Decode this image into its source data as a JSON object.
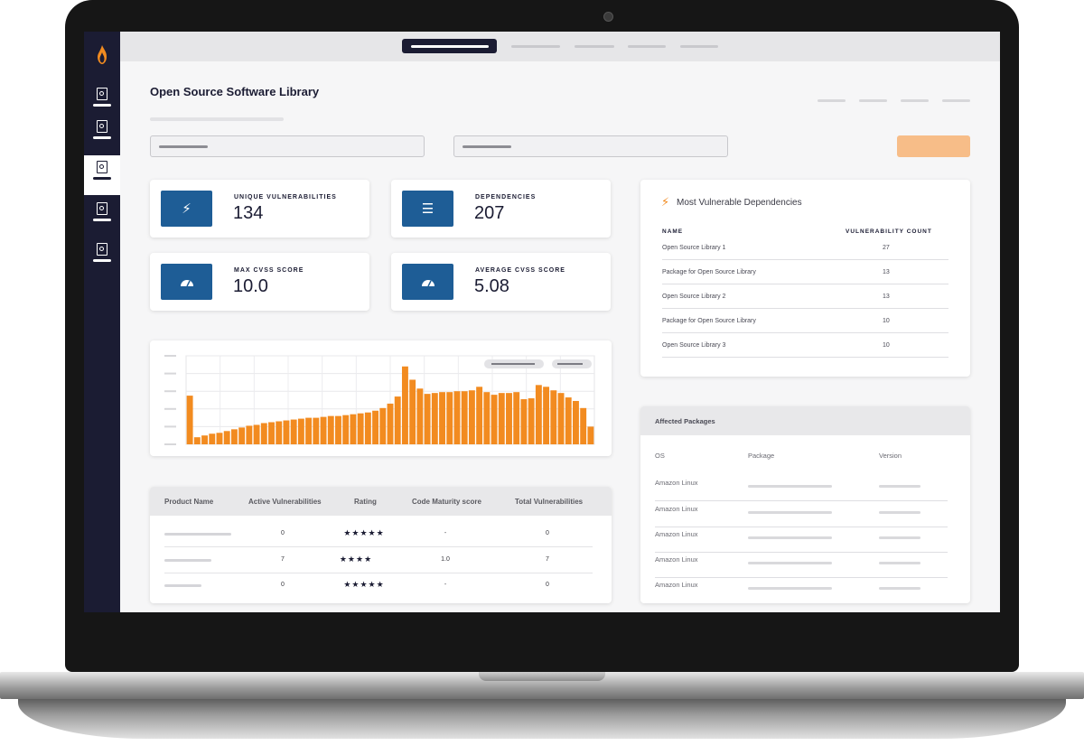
{
  "page": {
    "title": "Open Source Software Library"
  },
  "sidebar": {
    "logo_icon": "flame-icon",
    "items": [
      {
        "icon": "document-search-icon",
        "active": false
      },
      {
        "icon": "document-search-icon",
        "active": false
      },
      {
        "icon": "document-search-icon",
        "active": true
      },
      {
        "icon": "document-search-icon",
        "active": false
      },
      {
        "icon": "document-search-icon",
        "active": false
      }
    ]
  },
  "stats": [
    {
      "label": "UNIQUE VULNERABILITIES",
      "value": "134",
      "icon": "lightning-icon"
    },
    {
      "label": "DEPENDENCIES",
      "value": "207",
      "icon": "list-icon"
    },
    {
      "label": "MAX CVSS SCORE",
      "value": "10.0",
      "icon": "gauge-icon"
    },
    {
      "label": "AVERAGE CVSS SCORE",
      "value": "5.08",
      "icon": "gauge-icon"
    }
  ],
  "chart_data": {
    "type": "bar",
    "values": [
      55,
      8,
      10,
      12,
      13,
      15,
      17,
      19,
      21,
      22,
      24,
      25,
      26,
      27,
      28,
      29,
      30,
      30,
      31,
      32,
      32,
      33,
      34,
      35,
      36,
      38,
      41,
      46,
      54,
      88,
      73,
      63,
      57,
      58,
      59,
      59,
      60,
      60,
      61,
      65,
      59,
      56,
      58,
      58,
      59,
      51,
      52,
      67,
      65,
      61,
      58,
      53,
      49,
      41,
      20
    ],
    "ylim": [
      0,
      100
    ],
    "grid": true,
    "color": "#f28b20"
  },
  "product_table": {
    "headers": [
      "Product Name",
      "Active Vulnerabilities",
      "Rating",
      "Code Maturity score",
      "Total Vulnerabilities"
    ],
    "rows": [
      {
        "active": "0",
        "rating": "★★★★★",
        "maturity": "-",
        "total": "0"
      },
      {
        "active": "7",
        "rating": "★★★★",
        "maturity": "1.0",
        "total": "7"
      },
      {
        "active": "0",
        "rating": "★★★★★",
        "maturity": "-",
        "total": "0"
      }
    ]
  },
  "most_vulnerable": {
    "title": "Most Vulnerable Dependencies",
    "icon": "lightning-icon",
    "headers": [
      "NAME",
      "VULNERABILITY COUNT"
    ],
    "rows": [
      {
        "name": "Open Source Library 1",
        "count": "27"
      },
      {
        "name": "Package for Open Source Library",
        "count": "13"
      },
      {
        "name": "Open Source Library 2",
        "count": "13"
      },
      {
        "name": "Package for Open Source Library",
        "count": "10"
      },
      {
        "name": "Open Source Library 3",
        "count": "10"
      }
    ]
  },
  "affected_packages": {
    "title": "Affected Packages",
    "headers": [
      "OS",
      "Package",
      "Version"
    ],
    "rows": [
      {
        "os": "Amazon Linux"
      },
      {
        "os": "Amazon Linux"
      },
      {
        "os": "Amazon Linux"
      },
      {
        "os": "Amazon Linux"
      },
      {
        "os": "Amazon Linux"
      }
    ]
  },
  "colors": {
    "sidebar": "#1b1c33",
    "accent": "#f28b20",
    "stat_icon_bg": "#1e5d96",
    "action_button": "#f7bd88"
  }
}
